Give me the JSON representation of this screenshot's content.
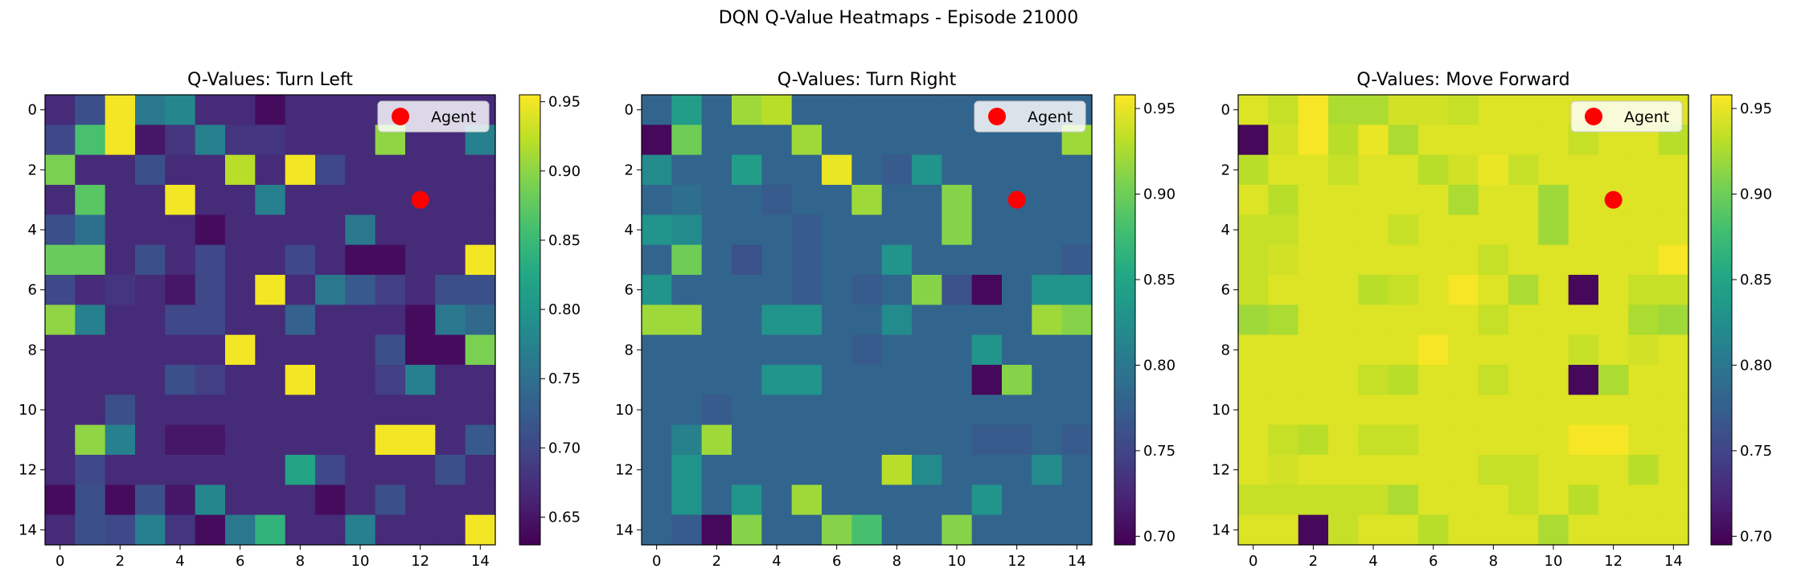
{
  "figure": {
    "suptitle": "DQN Q-Value Heatmaps - Episode 21000"
  },
  "chart_data": [
    {
      "type": "heatmap",
      "title": "Q-Values: Turn Left",
      "xlabel": "",
      "ylabel": "",
      "xticks": [
        0,
        2,
        4,
        6,
        8,
        10,
        12,
        14
      ],
      "yticks": [
        0,
        2,
        4,
        6,
        8,
        10,
        12,
        14
      ],
      "vmin": 0.63,
      "vmax": 0.955,
      "colorbar_ticks": [
        "0.65",
        "0.70",
        "0.75",
        "0.80",
        "0.85",
        "0.90",
        "0.95"
      ],
      "colormap": "viridis",
      "legend": {
        "label": "Agent",
        "location": "upper right",
        "marker_color": "#ff0000"
      },
      "agent": {
        "x": 12,
        "y": 3
      },
      "grid": [
        [
          0.67,
          0.71,
          0.95,
          0.76,
          0.78,
          0.67,
          0.67,
          0.64,
          0.67,
          0.67,
          0.67,
          0.67,
          0.67,
          0.67,
          0.67
        ],
        [
          0.7,
          0.86,
          0.95,
          0.65,
          0.68,
          0.77,
          0.68,
          0.68,
          0.67,
          0.67,
          0.67,
          0.9,
          0.67,
          0.67,
          0.77
        ],
        [
          0.89,
          0.67,
          0.67,
          0.71,
          0.67,
          0.67,
          0.92,
          0.67,
          0.95,
          0.7,
          0.67,
          0.67,
          0.67,
          0.67,
          0.67
        ],
        [
          0.67,
          0.87,
          0.67,
          0.67,
          0.95,
          0.67,
          0.67,
          0.77,
          0.67,
          0.67,
          0.67,
          0.67,
          0.67,
          0.67,
          0.67
        ],
        [
          0.71,
          0.75,
          0.67,
          0.67,
          0.67,
          0.64,
          0.67,
          0.67,
          0.67,
          0.67,
          0.76,
          0.67,
          0.67,
          0.67,
          0.67
        ],
        [
          0.88,
          0.88,
          0.67,
          0.71,
          0.67,
          0.7,
          0.67,
          0.67,
          0.7,
          0.67,
          0.64,
          0.64,
          0.67,
          0.67,
          0.95
        ],
        [
          0.7,
          0.67,
          0.68,
          0.67,
          0.65,
          0.7,
          0.67,
          0.95,
          0.67,
          0.76,
          0.72,
          0.69,
          0.67,
          0.71,
          0.71
        ],
        [
          0.9,
          0.77,
          0.67,
          0.67,
          0.7,
          0.7,
          0.67,
          0.67,
          0.73,
          0.67,
          0.67,
          0.67,
          0.64,
          0.76,
          0.74
        ],
        [
          0.67,
          0.67,
          0.67,
          0.67,
          0.67,
          0.67,
          0.95,
          0.67,
          0.67,
          0.67,
          0.67,
          0.71,
          0.64,
          0.64,
          0.89
        ],
        [
          0.67,
          0.67,
          0.67,
          0.67,
          0.71,
          0.69,
          0.67,
          0.67,
          0.95,
          0.67,
          0.67,
          0.69,
          0.77,
          0.67,
          0.67
        ],
        [
          0.67,
          0.67,
          0.71,
          0.67,
          0.67,
          0.67,
          0.67,
          0.67,
          0.67,
          0.67,
          0.67,
          0.67,
          0.67,
          0.67,
          0.67
        ],
        [
          0.67,
          0.9,
          0.77,
          0.67,
          0.65,
          0.65,
          0.67,
          0.67,
          0.67,
          0.67,
          0.67,
          0.95,
          0.95,
          0.67,
          0.72
        ],
        [
          0.67,
          0.7,
          0.67,
          0.67,
          0.67,
          0.67,
          0.67,
          0.67,
          0.82,
          0.7,
          0.67,
          0.67,
          0.67,
          0.71,
          0.67
        ],
        [
          0.64,
          0.71,
          0.64,
          0.71,
          0.65,
          0.78,
          0.67,
          0.67,
          0.67,
          0.64,
          0.67,
          0.71,
          0.67,
          0.67,
          0.67
        ],
        [
          0.67,
          0.71,
          0.7,
          0.77,
          0.68,
          0.64,
          0.76,
          0.84,
          0.67,
          0.67,
          0.77,
          0.67,
          0.67,
          0.67,
          0.95
        ]
      ]
    },
    {
      "type": "heatmap",
      "title": "Q-Values: Turn Right",
      "xlabel": "",
      "ylabel": "",
      "xticks": [
        0,
        2,
        4,
        6,
        8,
        10,
        12,
        14
      ],
      "yticks": [
        0,
        2,
        4,
        6,
        8,
        10,
        12,
        14
      ],
      "vmin": 0.695,
      "vmax": 0.958,
      "colorbar_ticks": [
        "0.70",
        "0.75",
        "0.80",
        "0.85",
        "0.90",
        "0.95"
      ],
      "colormap": "viridis",
      "legend": {
        "label": "Agent",
        "location": "upper right",
        "marker_color": "#ff0000"
      },
      "agent": {
        "x": 12,
        "y": 3
      },
      "grid": [
        [
          0.78,
          0.84,
          0.78,
          0.92,
          0.93,
          0.78,
          0.78,
          0.78,
          0.78,
          0.78,
          0.78,
          0.78,
          0.78,
          0.78,
          0.78
        ],
        [
          0.7,
          0.9,
          0.78,
          0.78,
          0.78,
          0.92,
          0.78,
          0.78,
          0.78,
          0.78,
          0.78,
          0.78,
          0.78,
          0.78,
          0.92
        ],
        [
          0.82,
          0.78,
          0.78,
          0.84,
          0.78,
          0.78,
          0.95,
          0.78,
          0.77,
          0.83,
          0.78,
          0.78,
          0.78,
          0.78,
          0.78
        ],
        [
          0.78,
          0.79,
          0.78,
          0.78,
          0.77,
          0.78,
          0.78,
          0.92,
          0.78,
          0.78,
          0.91,
          0.78,
          0.78,
          0.78,
          0.78
        ],
        [
          0.83,
          0.82,
          0.78,
          0.78,
          0.78,
          0.77,
          0.78,
          0.78,
          0.78,
          0.78,
          0.91,
          0.78,
          0.78,
          0.78,
          0.78
        ],
        [
          0.78,
          0.9,
          0.78,
          0.76,
          0.78,
          0.77,
          0.78,
          0.78,
          0.83,
          0.78,
          0.78,
          0.78,
          0.78,
          0.78,
          0.77
        ],
        [
          0.83,
          0.78,
          0.78,
          0.78,
          0.78,
          0.77,
          0.78,
          0.77,
          0.78,
          0.91,
          0.76,
          0.7,
          0.78,
          0.83,
          0.83
        ],
        [
          0.92,
          0.92,
          0.78,
          0.78,
          0.83,
          0.83,
          0.78,
          0.78,
          0.82,
          0.78,
          0.78,
          0.78,
          0.78,
          0.92,
          0.91
        ],
        [
          0.78,
          0.78,
          0.78,
          0.78,
          0.78,
          0.78,
          0.78,
          0.77,
          0.78,
          0.78,
          0.78,
          0.83,
          0.78,
          0.78,
          0.78
        ],
        [
          0.78,
          0.78,
          0.78,
          0.78,
          0.83,
          0.83,
          0.78,
          0.78,
          0.78,
          0.78,
          0.78,
          0.7,
          0.91,
          0.78,
          0.78
        ],
        [
          0.78,
          0.78,
          0.77,
          0.78,
          0.78,
          0.78,
          0.78,
          0.78,
          0.78,
          0.78,
          0.78,
          0.78,
          0.78,
          0.78,
          0.78
        ],
        [
          0.78,
          0.81,
          0.92,
          0.78,
          0.78,
          0.78,
          0.78,
          0.78,
          0.78,
          0.78,
          0.78,
          0.77,
          0.77,
          0.78,
          0.77
        ],
        [
          0.78,
          0.83,
          0.78,
          0.78,
          0.78,
          0.78,
          0.78,
          0.78,
          0.93,
          0.82,
          0.78,
          0.78,
          0.78,
          0.82,
          0.78
        ],
        [
          0.78,
          0.83,
          0.78,
          0.83,
          0.78,
          0.92,
          0.78,
          0.78,
          0.78,
          0.78,
          0.78,
          0.83,
          0.78,
          0.78,
          0.78
        ],
        [
          0.78,
          0.77,
          0.7,
          0.91,
          0.78,
          0.78,
          0.91,
          0.88,
          0.78,
          0.78,
          0.91,
          0.78,
          0.78,
          0.78,
          0.78
        ]
      ]
    },
    {
      "type": "heatmap",
      "title": "Q-Values: Move Forward",
      "xlabel": "",
      "ylabel": "",
      "xticks": [
        0,
        2,
        4,
        6,
        8,
        10,
        12,
        14
      ],
      "yticks": [
        0,
        2,
        4,
        6,
        8,
        10,
        12,
        14
      ],
      "vmin": 0.695,
      "vmax": 0.958,
      "colorbar_ticks": [
        "0.70",
        "0.75",
        "0.80",
        "0.85",
        "0.90",
        "0.95"
      ],
      "colormap": "viridis",
      "legend": {
        "label": "Agent",
        "location": "upper right",
        "marker_color": "#ff0000"
      },
      "agent": {
        "x": 12,
        "y": 3
      },
      "grid": [
        [
          0.945,
          0.935,
          0.955,
          0.925,
          0.925,
          0.94,
          0.94,
          0.935,
          0.945,
          0.945,
          0.945,
          0.945,
          0.945,
          0.945,
          0.945
        ],
        [
          0.7,
          0.94,
          0.955,
          0.93,
          0.95,
          0.925,
          0.945,
          0.945,
          0.945,
          0.945,
          0.945,
          0.935,
          0.945,
          0.945,
          0.93
        ],
        [
          0.93,
          0.945,
          0.945,
          0.935,
          0.945,
          0.945,
          0.93,
          0.94,
          0.95,
          0.935,
          0.945,
          0.945,
          0.945,
          0.945,
          0.945
        ],
        [
          0.945,
          0.93,
          0.945,
          0.945,
          0.945,
          0.945,
          0.945,
          0.925,
          0.945,
          0.945,
          0.92,
          0.945,
          0.945,
          0.945,
          0.945
        ],
        [
          0.935,
          0.935,
          0.945,
          0.945,
          0.945,
          0.935,
          0.945,
          0.945,
          0.945,
          0.945,
          0.92,
          0.945,
          0.945,
          0.945,
          0.945
        ],
        [
          0.935,
          0.94,
          0.945,
          0.945,
          0.945,
          0.945,
          0.945,
          0.945,
          0.935,
          0.945,
          0.945,
          0.945,
          0.945,
          0.945,
          0.955
        ],
        [
          0.935,
          0.945,
          0.945,
          0.945,
          0.93,
          0.935,
          0.945,
          0.955,
          0.945,
          0.925,
          0.945,
          0.7,
          0.945,
          0.935,
          0.935
        ],
        [
          0.92,
          0.925,
          0.945,
          0.945,
          0.945,
          0.945,
          0.945,
          0.945,
          0.935,
          0.945,
          0.945,
          0.945,
          0.945,
          0.925,
          0.92
        ],
        [
          0.945,
          0.945,
          0.945,
          0.945,
          0.945,
          0.945,
          0.955,
          0.945,
          0.945,
          0.945,
          0.945,
          0.935,
          0.945,
          0.94,
          0.945
        ],
        [
          0.945,
          0.945,
          0.945,
          0.945,
          0.935,
          0.93,
          0.945,
          0.945,
          0.935,
          0.945,
          0.945,
          0.7,
          0.925,
          0.945,
          0.945
        ],
        [
          0.945,
          0.945,
          0.945,
          0.945,
          0.945,
          0.945,
          0.945,
          0.945,
          0.945,
          0.945,
          0.945,
          0.945,
          0.945,
          0.945,
          0.945
        ],
        [
          0.945,
          0.935,
          0.93,
          0.945,
          0.935,
          0.935,
          0.945,
          0.945,
          0.945,
          0.945,
          0.945,
          0.955,
          0.955,
          0.945,
          0.945
        ],
        [
          0.945,
          0.94,
          0.945,
          0.945,
          0.945,
          0.945,
          0.945,
          0.945,
          0.935,
          0.935,
          0.945,
          0.945,
          0.945,
          0.93,
          0.945
        ],
        [
          0.935,
          0.935,
          0.935,
          0.935,
          0.935,
          0.925,
          0.945,
          0.945,
          0.945,
          0.935,
          0.945,
          0.93,
          0.945,
          0.945,
          0.945
        ],
        [
          0.945,
          0.945,
          0.7,
          0.935,
          0.945,
          0.945,
          0.93,
          0.945,
          0.945,
          0.945,
          0.925,
          0.945,
          0.945,
          0.945,
          0.945
        ]
      ]
    }
  ]
}
